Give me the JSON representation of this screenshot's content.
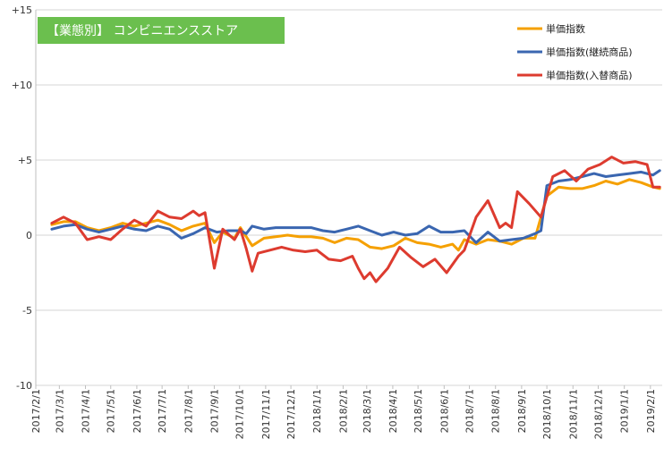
{
  "chart_data": {
    "type": "line",
    "title": "【業態別】 コンビニエンスストア",
    "title_bg": "#6bbf4e",
    "xlabel": "",
    "ylabel": "",
    "ylim": [
      -10,
      15
    ],
    "yticks": [
      15,
      10,
      5,
      0,
      -5,
      -10
    ],
    "ytick_labels": [
      "+15",
      "+10",
      "+5",
      "0",
      "-5",
      "-10"
    ],
    "xlim": [
      "2017-02-01",
      "2019-02-15"
    ],
    "xtick_labels": [
      "2017/2/1",
      "2017/3/1",
      "2017/4/1",
      "2017/5/1",
      "2017/6/1",
      "2017/7/1",
      "2017/8/1",
      "2017/9/1",
      "2017/10/1",
      "2017/11/1",
      "2017/12/1",
      "2018/1/1",
      "2018/2/1",
      "2018/3/1",
      "2018/4/1",
      "2018/5/1",
      "2018/6/1",
      "2018/7/1",
      "2018/8/1",
      "2018/9/1",
      "2018/10/1",
      "2018/11/1",
      "2018/12/1",
      "2019/1/1",
      "2019/2/1"
    ],
    "grid": "horizontal",
    "legend_position": "top-right",
    "series": [
      {
        "name": "単価指数",
        "color": "#f5a000",
        "points": [
          [
            "2017-02-20",
            0.7
          ],
          [
            "2017-03-06",
            0.9
          ],
          [
            "2017-03-20",
            0.9
          ],
          [
            "2017-04-03",
            0.5
          ],
          [
            "2017-04-17",
            0.3
          ],
          [
            "2017-05-01",
            0.5
          ],
          [
            "2017-05-15",
            0.8
          ],
          [
            "2017-05-29",
            0.6
          ],
          [
            "2017-06-12",
            0.8
          ],
          [
            "2017-06-26",
            1.0
          ],
          [
            "2017-07-10",
            0.7
          ],
          [
            "2017-07-24",
            0.3
          ],
          [
            "2017-08-07",
            0.6
          ],
          [
            "2017-08-21",
            0.8
          ],
          [
            "2017-09-01",
            -0.5
          ],
          [
            "2017-09-11",
            0.2
          ],
          [
            "2017-09-25",
            -0.2
          ],
          [
            "2017-10-02",
            0.5
          ],
          [
            "2017-10-16",
            -0.7
          ],
          [
            "2017-10-30",
            -0.2
          ],
          [
            "2017-11-13",
            -0.1
          ],
          [
            "2017-11-27",
            0.0
          ],
          [
            "2017-12-11",
            -0.1
          ],
          [
            "2017-12-25",
            -0.1
          ],
          [
            "2018-01-08",
            -0.2
          ],
          [
            "2018-01-22",
            -0.5
          ],
          [
            "2018-02-05",
            -0.2
          ],
          [
            "2018-02-19",
            -0.3
          ],
          [
            "2018-03-05",
            -0.8
          ],
          [
            "2018-03-19",
            -0.9
          ],
          [
            "2018-04-02",
            -0.7
          ],
          [
            "2018-04-16",
            -0.2
          ],
          [
            "2018-04-30",
            -0.5
          ],
          [
            "2018-05-14",
            -0.6
          ],
          [
            "2018-05-28",
            -0.8
          ],
          [
            "2018-06-11",
            -0.6
          ],
          [
            "2018-06-18",
            -1.0
          ],
          [
            "2018-06-25",
            -0.3
          ],
          [
            "2018-07-09",
            -0.6
          ],
          [
            "2018-07-23",
            -0.3
          ],
          [
            "2018-08-06",
            -0.4
          ],
          [
            "2018-08-20",
            -0.6
          ],
          [
            "2018-09-03",
            -0.2
          ],
          [
            "2018-09-17",
            -0.2
          ],
          [
            "2018-10-01",
            2.6
          ],
          [
            "2018-10-15",
            3.2
          ],
          [
            "2018-10-29",
            3.1
          ],
          [
            "2018-11-12",
            3.1
          ],
          [
            "2018-11-26",
            3.3
          ],
          [
            "2018-12-10",
            3.6
          ],
          [
            "2018-12-24",
            3.4
          ],
          [
            "2019-01-07",
            3.7
          ],
          [
            "2019-01-21",
            3.5
          ],
          [
            "2019-02-04",
            3.2
          ],
          [
            "2019-02-12",
            3.1
          ]
        ]
      },
      {
        "name": "単価指数(継続商品)",
        "color": "#3a66b0",
        "points": [
          [
            "2017-02-20",
            0.4
          ],
          [
            "2017-03-06",
            0.6
          ],
          [
            "2017-03-20",
            0.7
          ],
          [
            "2017-04-03",
            0.4
          ],
          [
            "2017-04-17",
            0.2
          ],
          [
            "2017-05-01",
            0.4
          ],
          [
            "2017-05-15",
            0.6
          ],
          [
            "2017-05-29",
            0.4
          ],
          [
            "2017-06-12",
            0.3
          ],
          [
            "2017-06-26",
            0.6
          ],
          [
            "2017-07-10",
            0.4
          ],
          [
            "2017-07-24",
            -0.2
          ],
          [
            "2017-08-07",
            0.1
          ],
          [
            "2017-08-21",
            0.5
          ],
          [
            "2017-09-04",
            0.2
          ],
          [
            "2017-09-18",
            0.3
          ],
          [
            "2017-10-02",
            0.3
          ],
          [
            "2017-10-09",
            0.1
          ],
          [
            "2017-10-16",
            0.6
          ],
          [
            "2017-10-30",
            0.4
          ],
          [
            "2017-11-13",
            0.5
          ],
          [
            "2017-11-27",
            0.5
          ],
          [
            "2017-12-11",
            0.5
          ],
          [
            "2017-12-25",
            0.5
          ],
          [
            "2018-01-08",
            0.3
          ],
          [
            "2018-01-22",
            0.2
          ],
          [
            "2018-02-05",
            0.4
          ],
          [
            "2018-02-19",
            0.6
          ],
          [
            "2018-03-05",
            0.3
          ],
          [
            "2018-03-19",
            0.0
          ],
          [
            "2018-04-02",
            0.2
          ],
          [
            "2018-04-16",
            0.0
          ],
          [
            "2018-04-30",
            0.1
          ],
          [
            "2018-05-14",
            0.6
          ],
          [
            "2018-05-28",
            0.2
          ],
          [
            "2018-06-11",
            0.2
          ],
          [
            "2018-06-25",
            0.3
          ],
          [
            "2018-07-09",
            -0.5
          ],
          [
            "2018-07-23",
            0.2
          ],
          [
            "2018-08-06",
            -0.4
          ],
          [
            "2018-08-20",
            -0.3
          ],
          [
            "2018-09-03",
            -0.2
          ],
          [
            "2018-09-17",
            0.1
          ],
          [
            "2018-09-24",
            0.3
          ],
          [
            "2018-10-01",
            3.3
          ],
          [
            "2018-10-15",
            3.6
          ],
          [
            "2018-10-29",
            3.7
          ],
          [
            "2018-11-12",
            3.9
          ],
          [
            "2018-11-26",
            4.1
          ],
          [
            "2018-12-10",
            3.9
          ],
          [
            "2018-12-24",
            4.0
          ],
          [
            "2019-01-07",
            4.1
          ],
          [
            "2019-01-21",
            4.2
          ],
          [
            "2019-02-04",
            4.0
          ],
          [
            "2019-02-12",
            4.3
          ]
        ]
      },
      {
        "name": "単価指数(入替商品)",
        "color": "#dd3b2f",
        "points": [
          [
            "2017-02-20",
            0.8
          ],
          [
            "2017-03-06",
            1.2
          ],
          [
            "2017-03-20",
            0.8
          ],
          [
            "2017-04-03",
            -0.3
          ],
          [
            "2017-04-17",
            -0.1
          ],
          [
            "2017-05-01",
            -0.3
          ],
          [
            "2017-05-15",
            0.4
          ],
          [
            "2017-05-29",
            1.0
          ],
          [
            "2017-06-12",
            0.6
          ],
          [
            "2017-06-26",
            1.6
          ],
          [
            "2017-07-10",
            1.2
          ],
          [
            "2017-07-24",
            1.1
          ],
          [
            "2017-08-07",
            1.6
          ],
          [
            "2017-08-14",
            1.3
          ],
          [
            "2017-08-21",
            1.5
          ],
          [
            "2017-09-01",
            -2.2
          ],
          [
            "2017-09-11",
            0.4
          ],
          [
            "2017-09-25",
            -0.3
          ],
          [
            "2017-10-02",
            0.4
          ],
          [
            "2017-10-09",
            -0.9
          ],
          [
            "2017-10-16",
            -2.4
          ],
          [
            "2017-10-23",
            -1.2
          ],
          [
            "2017-11-06",
            -1.0
          ],
          [
            "2017-11-20",
            -0.8
          ],
          [
            "2017-12-04",
            -1.0
          ],
          [
            "2017-12-18",
            -1.1
          ],
          [
            "2018-01-01",
            -1.0
          ],
          [
            "2018-01-15",
            -1.6
          ],
          [
            "2018-01-29",
            -1.7
          ],
          [
            "2018-02-12",
            -1.4
          ],
          [
            "2018-02-19",
            -2.2
          ],
          [
            "2018-02-26",
            -2.9
          ],
          [
            "2018-03-05",
            -2.5
          ],
          [
            "2018-03-12",
            -3.1
          ],
          [
            "2018-03-26",
            -2.2
          ],
          [
            "2018-04-09",
            -0.8
          ],
          [
            "2018-04-23",
            -1.5
          ],
          [
            "2018-05-07",
            -2.1
          ],
          [
            "2018-05-21",
            -1.6
          ],
          [
            "2018-06-04",
            -2.5
          ],
          [
            "2018-06-18",
            -1.4
          ],
          [
            "2018-06-25",
            -1.0
          ],
          [
            "2018-07-09",
            1.2
          ],
          [
            "2018-07-23",
            2.3
          ],
          [
            "2018-08-06",
            0.5
          ],
          [
            "2018-08-13",
            0.8
          ],
          [
            "2018-08-20",
            0.5
          ],
          [
            "2018-08-27",
            2.9
          ],
          [
            "2018-09-10",
            2.1
          ],
          [
            "2018-09-24",
            1.2
          ],
          [
            "2018-10-08",
            3.9
          ],
          [
            "2018-10-22",
            4.3
          ],
          [
            "2018-11-05",
            3.6
          ],
          [
            "2018-11-19",
            4.4
          ],
          [
            "2018-12-03",
            4.7
          ],
          [
            "2018-12-17",
            5.2
          ],
          [
            "2018-12-31",
            4.8
          ],
          [
            "2019-01-14",
            4.9
          ],
          [
            "2019-01-28",
            4.7
          ],
          [
            "2019-02-04",
            3.2
          ],
          [
            "2019-02-12",
            3.2
          ]
        ]
      }
    ]
  }
}
